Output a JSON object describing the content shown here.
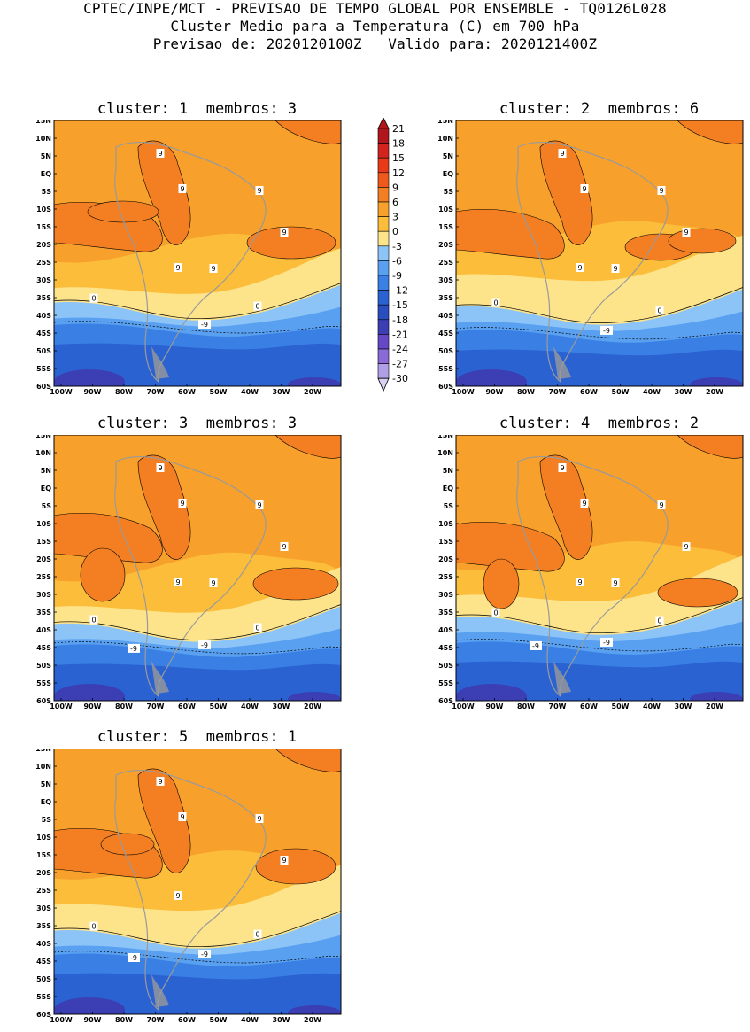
{
  "header": {
    "line1": "CPTEC/INPE/MCT - PREVISAO DE TEMPO GLOBAL POR ENSEMBLE - TQ0126L028",
    "line2": "Cluster Medio para a Temperatura (C) em 700 hPa",
    "line3": "Previsao de: 2020120100Z   Valido para: 2020121400Z"
  },
  "panels": [
    {
      "title": "cluster: 1  membros: 3"
    },
    {
      "title": "cluster: 2  membros: 6"
    },
    {
      "title": "cluster: 3  membros: 3"
    },
    {
      "title": "cluster: 4  membros: 2"
    },
    {
      "title": "cluster: 5  membros: 1"
    }
  ],
  "axes": {
    "lat_labels": [
      "15N",
      "10N",
      "5N",
      "EQ",
      "5S",
      "10S",
      "15S",
      "20S",
      "25S",
      "30S",
      "35S",
      "40S",
      "45S",
      "50S",
      "55S",
      "60S"
    ],
    "lon_labels": [
      "100W",
      "90W",
      "80W",
      "70W",
      "60W",
      "50W",
      "40W",
      "30W",
      "20W"
    ]
  },
  "colorbar": {
    "labels": [
      "21",
      "18",
      "15",
      "12",
      "9",
      "6",
      "3",
      "0",
      "-3",
      "-6",
      "-9",
      "-12",
      "-15",
      "-18",
      "-21",
      "-24",
      "-27",
      "-30"
    ],
    "colors": {
      "c21": "#b0161c",
      "c18": "#d2231e",
      "c15": "#e83a17",
      "c12": "#ef5a1c",
      "c9": "#f47f22",
      "c6": "#f7a02c",
      "c3": "#fbbd3a",
      "c0": "#fde38a",
      "cm3": "#8cc4f8",
      "cm6": "#5aa0f0",
      "cm9": "#3a80e4",
      "cm12": "#2b62d2",
      "cm15": "#2a4ec0",
      "cm18": "#3c3fb4",
      "cm21": "#6548c6",
      "cm24": "#8a6ad6",
      "cm27": "#b09ee6",
      "cm30": "#d8cff4"
    }
  },
  "contour_labels": {
    "p1": [
      "9",
      "9",
      "9",
      "9",
      "9",
      "9",
      "0",
      "0",
      "-9"
    ],
    "p2": [
      "9",
      "9",
      "9",
      "9",
      "9",
      "9",
      "0",
      "0",
      "-9"
    ],
    "p3": [
      "9",
      "9",
      "9",
      "9",
      "9",
      "9",
      "0",
      "0",
      "-9",
      "-9"
    ],
    "p4": [
      "9",
      "9",
      "9",
      "9",
      "9",
      "9",
      "0",
      "0",
      "-9",
      "-9"
    ],
    "p5": [
      "9",
      "9",
      "9",
      "9",
      "9",
      "0",
      "0",
      "-9",
      "-9"
    ]
  }
}
